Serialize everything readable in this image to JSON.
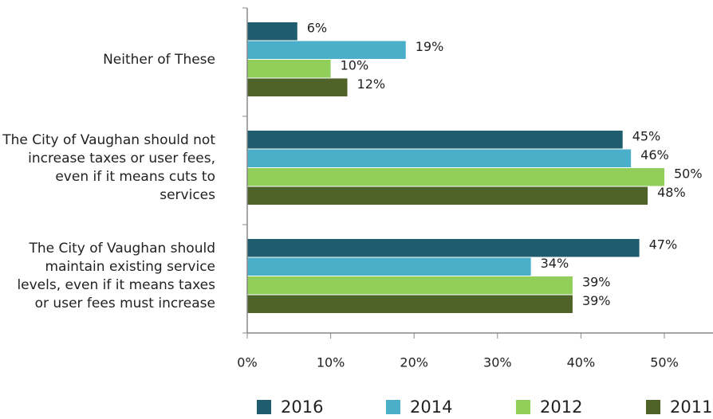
{
  "chart_data": {
    "type": "bar",
    "orientation": "horizontal",
    "categories": [
      "Neither of These",
      "The City of Vaughan should not increase taxes or user fees, even if it means cuts to services",
      "The City of Vaughan should maintain existing service levels, even if it means taxes or user fees must increase"
    ],
    "series": [
      {
        "name": "2016",
        "color": "#1f5c6e",
        "values": [
          6,
          45,
          47
        ],
        "value_labels": [
          "6%",
          "45%",
          "47%"
        ]
      },
      {
        "name": "2014",
        "color": "#4bafc9",
        "values": [
          19,
          46,
          34
        ],
        "value_labels": [
          "19%",
          "46%",
          "34%"
        ]
      },
      {
        "name": "2012",
        "color": "#92cf5a",
        "values": [
          10,
          50,
          39
        ],
        "value_labels": [
          "10%",
          "50%",
          "39%"
        ]
      },
      {
        "name": "2011",
        "color": "#4f6228",
        "values": [
          12,
          48,
          39
        ],
        "value_labels": [
          "12%",
          "48%",
          "39%"
        ]
      }
    ],
    "xlim": [
      0,
      55
    ],
    "xticks": [
      {
        "value": 0,
        "label": "0%"
      },
      {
        "value": 10,
        "label": "10%"
      },
      {
        "value": 20,
        "label": "20%"
      },
      {
        "value": 30,
        "label": "30%"
      },
      {
        "value": 40,
        "label": "40%"
      },
      {
        "value": 50,
        "label": "50%"
      }
    ],
    "legend": "bottom"
  }
}
